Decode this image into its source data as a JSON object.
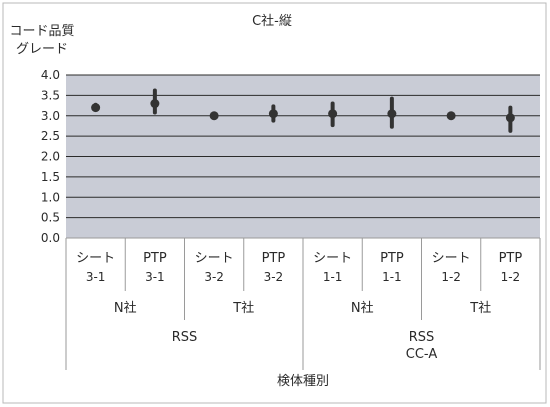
{
  "chart_data": {
    "type": "scatter",
    "title": "C社-縦",
    "ylabel": [
      "コード品質",
      "グレード"
    ],
    "xlabel": "検体種別",
    "ylim": [
      0,
      4
    ],
    "yticks": [
      "4.0",
      "3.5",
      "3.0",
      "2.5",
      "2.0",
      "1.5",
      "1.0",
      "0.5",
      "0.0"
    ],
    "grid": true,
    "colors": {
      "plot_background": "#c9ccd6",
      "marker": "#333333",
      "frame": "#9a9a9a"
    },
    "categories": [
      {
        "label": [
          "シート",
          "3-1"
        ],
        "mean": 3.2,
        "low": 3.15,
        "high": 3.27
      },
      {
        "label": [
          "PTP",
          "3-1"
        ],
        "mean": 3.3,
        "low": 3.08,
        "high": 3.62
      },
      {
        "label": [
          "シート",
          "3-2"
        ],
        "mean": 3.0,
        "low": 2.98,
        "high": 3.03
      },
      {
        "label": [
          "PTP",
          "3-2"
        ],
        "mean": 3.05,
        "low": 2.88,
        "high": 3.23
      },
      {
        "label": [
          "シート",
          "1-1"
        ],
        "mean": 3.05,
        "low": 2.77,
        "high": 3.3
      },
      {
        "label": [
          "PTP",
          "1-1"
        ],
        "mean": 3.05,
        "low": 2.73,
        "high": 3.42
      },
      {
        "label": [
          "シート",
          "1-2"
        ],
        "mean": 3.0,
        "low": 2.98,
        "high": 3.03
      },
      {
        "label": [
          "PTP",
          "1-2"
        ],
        "mean": 2.95,
        "low": 2.63,
        "high": 3.2
      }
    ],
    "company_groups": [
      "N社",
      "T社",
      "N社",
      "T社"
    ],
    "method_groups": [
      [
        "RSS"
      ],
      [
        "RSS",
        "CC-A"
      ]
    ]
  }
}
